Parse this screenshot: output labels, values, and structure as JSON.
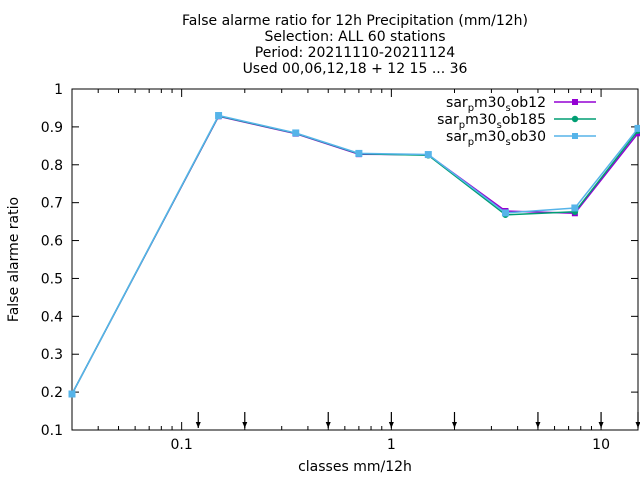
{
  "chart_data": {
    "type": "line",
    "title_lines": [
      "False alarme ratio  for 12h Precipitation (mm/12h)",
      "Selection: ALL     60 stations",
      "Period: 20211110-20211124",
      "Used 00,06,12,18 + 12 15 ... 36"
    ],
    "xlabel": "classes mm/12h",
    "ylabel": "False alarme ratio",
    "x_scale": "log",
    "xlim": [
      0.03,
      15
    ],
    "ylim": [
      0.1,
      1.0
    ],
    "x_ticks": [
      0.1,
      1,
      10
    ],
    "x_tick_labels": [
      "0.1",
      "1",
      "10"
    ],
    "y_ticks": [
      0.1,
      0.2,
      0.3,
      0.4,
      0.5,
      0.6,
      0.7,
      0.8,
      0.9,
      1.0
    ],
    "y_tick_labels": [
      "0.1",
      "0.2",
      "0.3",
      "0.4",
      "0.5",
      "0.6",
      "0.7",
      "0.8",
      "0.9",
      "1"
    ],
    "grid": false,
    "legend_position": "top-right",
    "x": [
      0.03,
      0.15,
      0.35,
      0.7,
      1.5,
      3.5,
      7.5,
      15
    ],
    "series": [
      {
        "name_base": "sar",
        "name_sub": "p",
        "name_mid": "m30",
        "name_sub2": "s",
        "name_end": "ob12",
        "color": "#9400d3",
        "values": [
          0.195,
          0.928,
          0.882,
          0.828,
          0.826,
          0.678,
          0.672,
          0.883
        ]
      },
      {
        "name_base": "sar",
        "name_sub": "p",
        "name_mid": "m30",
        "name_sub2": "s",
        "name_end": "ob185",
        "color": "#009e73",
        "values": [
          0.195,
          0.929,
          0.883,
          0.829,
          0.825,
          0.668,
          0.676,
          0.89
        ]
      },
      {
        "name_base": "sar",
        "name_sub": "p",
        "name_mid": "m30",
        "name_sub2": "s",
        "name_end": "ob30",
        "color": "#56b4e9",
        "values": [
          0.195,
          0.93,
          0.884,
          0.83,
          0.827,
          0.673,
          0.686,
          0.896
        ]
      }
    ],
    "bottom_markers_x": [
      0.12,
      0.2,
      0.5,
      1.0,
      2.0,
      5.0,
      10.0,
      20.0
    ]
  }
}
